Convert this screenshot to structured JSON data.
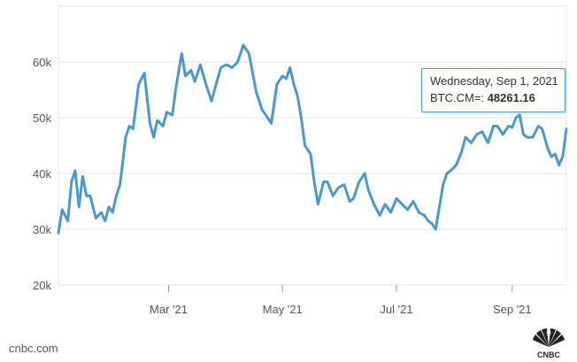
{
  "source_label": "cnbc.com",
  "logo_text": "CNBC",
  "tooltip": {
    "date": "Wednesday, Sep 1, 2021",
    "symbol_label": "BTC.CM=:",
    "value": "48261.16"
  },
  "colors": {
    "line": "#4b98cf",
    "grid": "#e3e3e3",
    "text": "#555555"
  },
  "chart_data": {
    "type": "line",
    "title": "",
    "xlabel": "",
    "ylabel": "",
    "ylim": [
      20000,
      70000
    ],
    "y_ticks": [
      {
        "value": 20000,
        "label": "20k"
      },
      {
        "value": 30000,
        "label": "30k"
      },
      {
        "value": 40000,
        "label": "40k"
      },
      {
        "value": 50000,
        "label": "50k"
      },
      {
        "value": 60000,
        "label": "60k"
      }
    ],
    "x_range": [
      "2021-01-01",
      "2021-09-30"
    ],
    "x_ticks": [
      {
        "date": "2021-03-01",
        "label": "Mar '21"
      },
      {
        "date": "2021-05-01",
        "label": "May '21"
      },
      {
        "date": "2021-07-01",
        "label": "Jul '21"
      },
      {
        "date": "2021-09-01",
        "label": "Sep '21"
      }
    ],
    "grid": true,
    "legend": "none",
    "series": [
      {
        "x": [
          "2021-01-01",
          "2021-01-03",
          "2021-01-06",
          "2021-01-08",
          "2021-01-10",
          "2021-01-12",
          "2021-01-14",
          "2021-01-16",
          "2021-01-18",
          "2021-01-21",
          "2021-01-24",
          "2021-01-26",
          "2021-01-28",
          "2021-01-30",
          "2021-02-01",
          "2021-02-03",
          "2021-02-06",
          "2021-02-08",
          "2021-02-10",
          "2021-02-13",
          "2021-02-16",
          "2021-02-19",
          "2021-02-21",
          "2021-02-23",
          "2021-02-26",
          "2021-02-28",
          "2021-03-03",
          "2021-03-05",
          "2021-03-08",
          "2021-03-10",
          "2021-03-13",
          "2021-03-15",
          "2021-03-18",
          "2021-03-21",
          "2021-03-24",
          "2021-03-26",
          "2021-03-29",
          "2021-04-01",
          "2021-04-04",
          "2021-04-07",
          "2021-04-10",
          "2021-04-13",
          "2021-04-15",
          "2021-04-17",
          "2021-04-20",
          "2021-04-23",
          "2021-04-25",
          "2021-04-28",
          "2021-05-01",
          "2021-05-03",
          "2021-05-05",
          "2021-05-07",
          "2021-05-09",
          "2021-05-11",
          "2021-05-13",
          "2021-05-16",
          "2021-05-18",
          "2021-05-20",
          "2021-05-23",
          "2021-05-25",
          "2021-05-28",
          "2021-05-31",
          "2021-06-03",
          "2021-06-06",
          "2021-06-08",
          "2021-06-11",
          "2021-06-14",
          "2021-06-16",
          "2021-06-19",
          "2021-06-22",
          "2021-06-25",
          "2021-06-28",
          "2021-07-01",
          "2021-07-04",
          "2021-07-07",
          "2021-07-10",
          "2021-07-13",
          "2021-07-16",
          "2021-07-18",
          "2021-07-20",
          "2021-07-22",
          "2021-07-24",
          "2021-07-26",
          "2021-07-28",
          "2021-07-30",
          "2021-08-02",
          "2021-08-05",
          "2021-08-07",
          "2021-08-10",
          "2021-08-13",
          "2021-08-16",
          "2021-08-19",
          "2021-08-22",
          "2021-08-24",
          "2021-08-27",
          "2021-08-30",
          "2021-09-01",
          "2021-09-03",
          "2021-09-05",
          "2021-09-07",
          "2021-09-09",
          "2021-09-12",
          "2021-09-15",
          "2021-09-17",
          "2021-09-20",
          "2021-09-22",
          "2021-09-24",
          "2021-09-26",
          "2021-09-28",
          "2021-09-30"
        ],
        "y": [
          29300,
          33500,
          31500,
          38500,
          40500,
          34000,
          39500,
          36000,
          36000,
          32000,
          33000,
          31500,
          34000,
          33000,
          36000,
          38000,
          46500,
          48500,
          48000,
          56000,
          58000,
          49000,
          46500,
          49500,
          48500,
          51000,
          50500,
          55500,
          61500,
          57500,
          58500,
          56500,
          59500,
          56000,
          53000,
          55500,
          59000,
          59500,
          59000,
          60000,
          63000,
          61500,
          58000,
          54500,
          51500,
          50000,
          49000,
          56000,
          57500,
          57000,
          59000,
          56000,
          54000,
          50000,
          45000,
          43500,
          38500,
          34500,
          38500,
          38500,
          36000,
          37500,
          38000,
          35000,
          35500,
          38500,
          40000,
          37000,
          34500,
          32500,
          34500,
          33000,
          35500,
          34500,
          33500,
          35000,
          33000,
          32500,
          31500,
          31000,
          30000,
          34000,
          38000,
          40000,
          40500,
          41500,
          44000,
          46500,
          45500,
          47000,
          47500,
          45500,
          48500,
          48500,
          47000,
          48500,
          48261,
          50000,
          50500,
          47000,
          46500,
          46500,
          48500,
          48000,
          44500,
          43000,
          43500,
          41500,
          43000,
          48000
        ]
      }
    ]
  }
}
